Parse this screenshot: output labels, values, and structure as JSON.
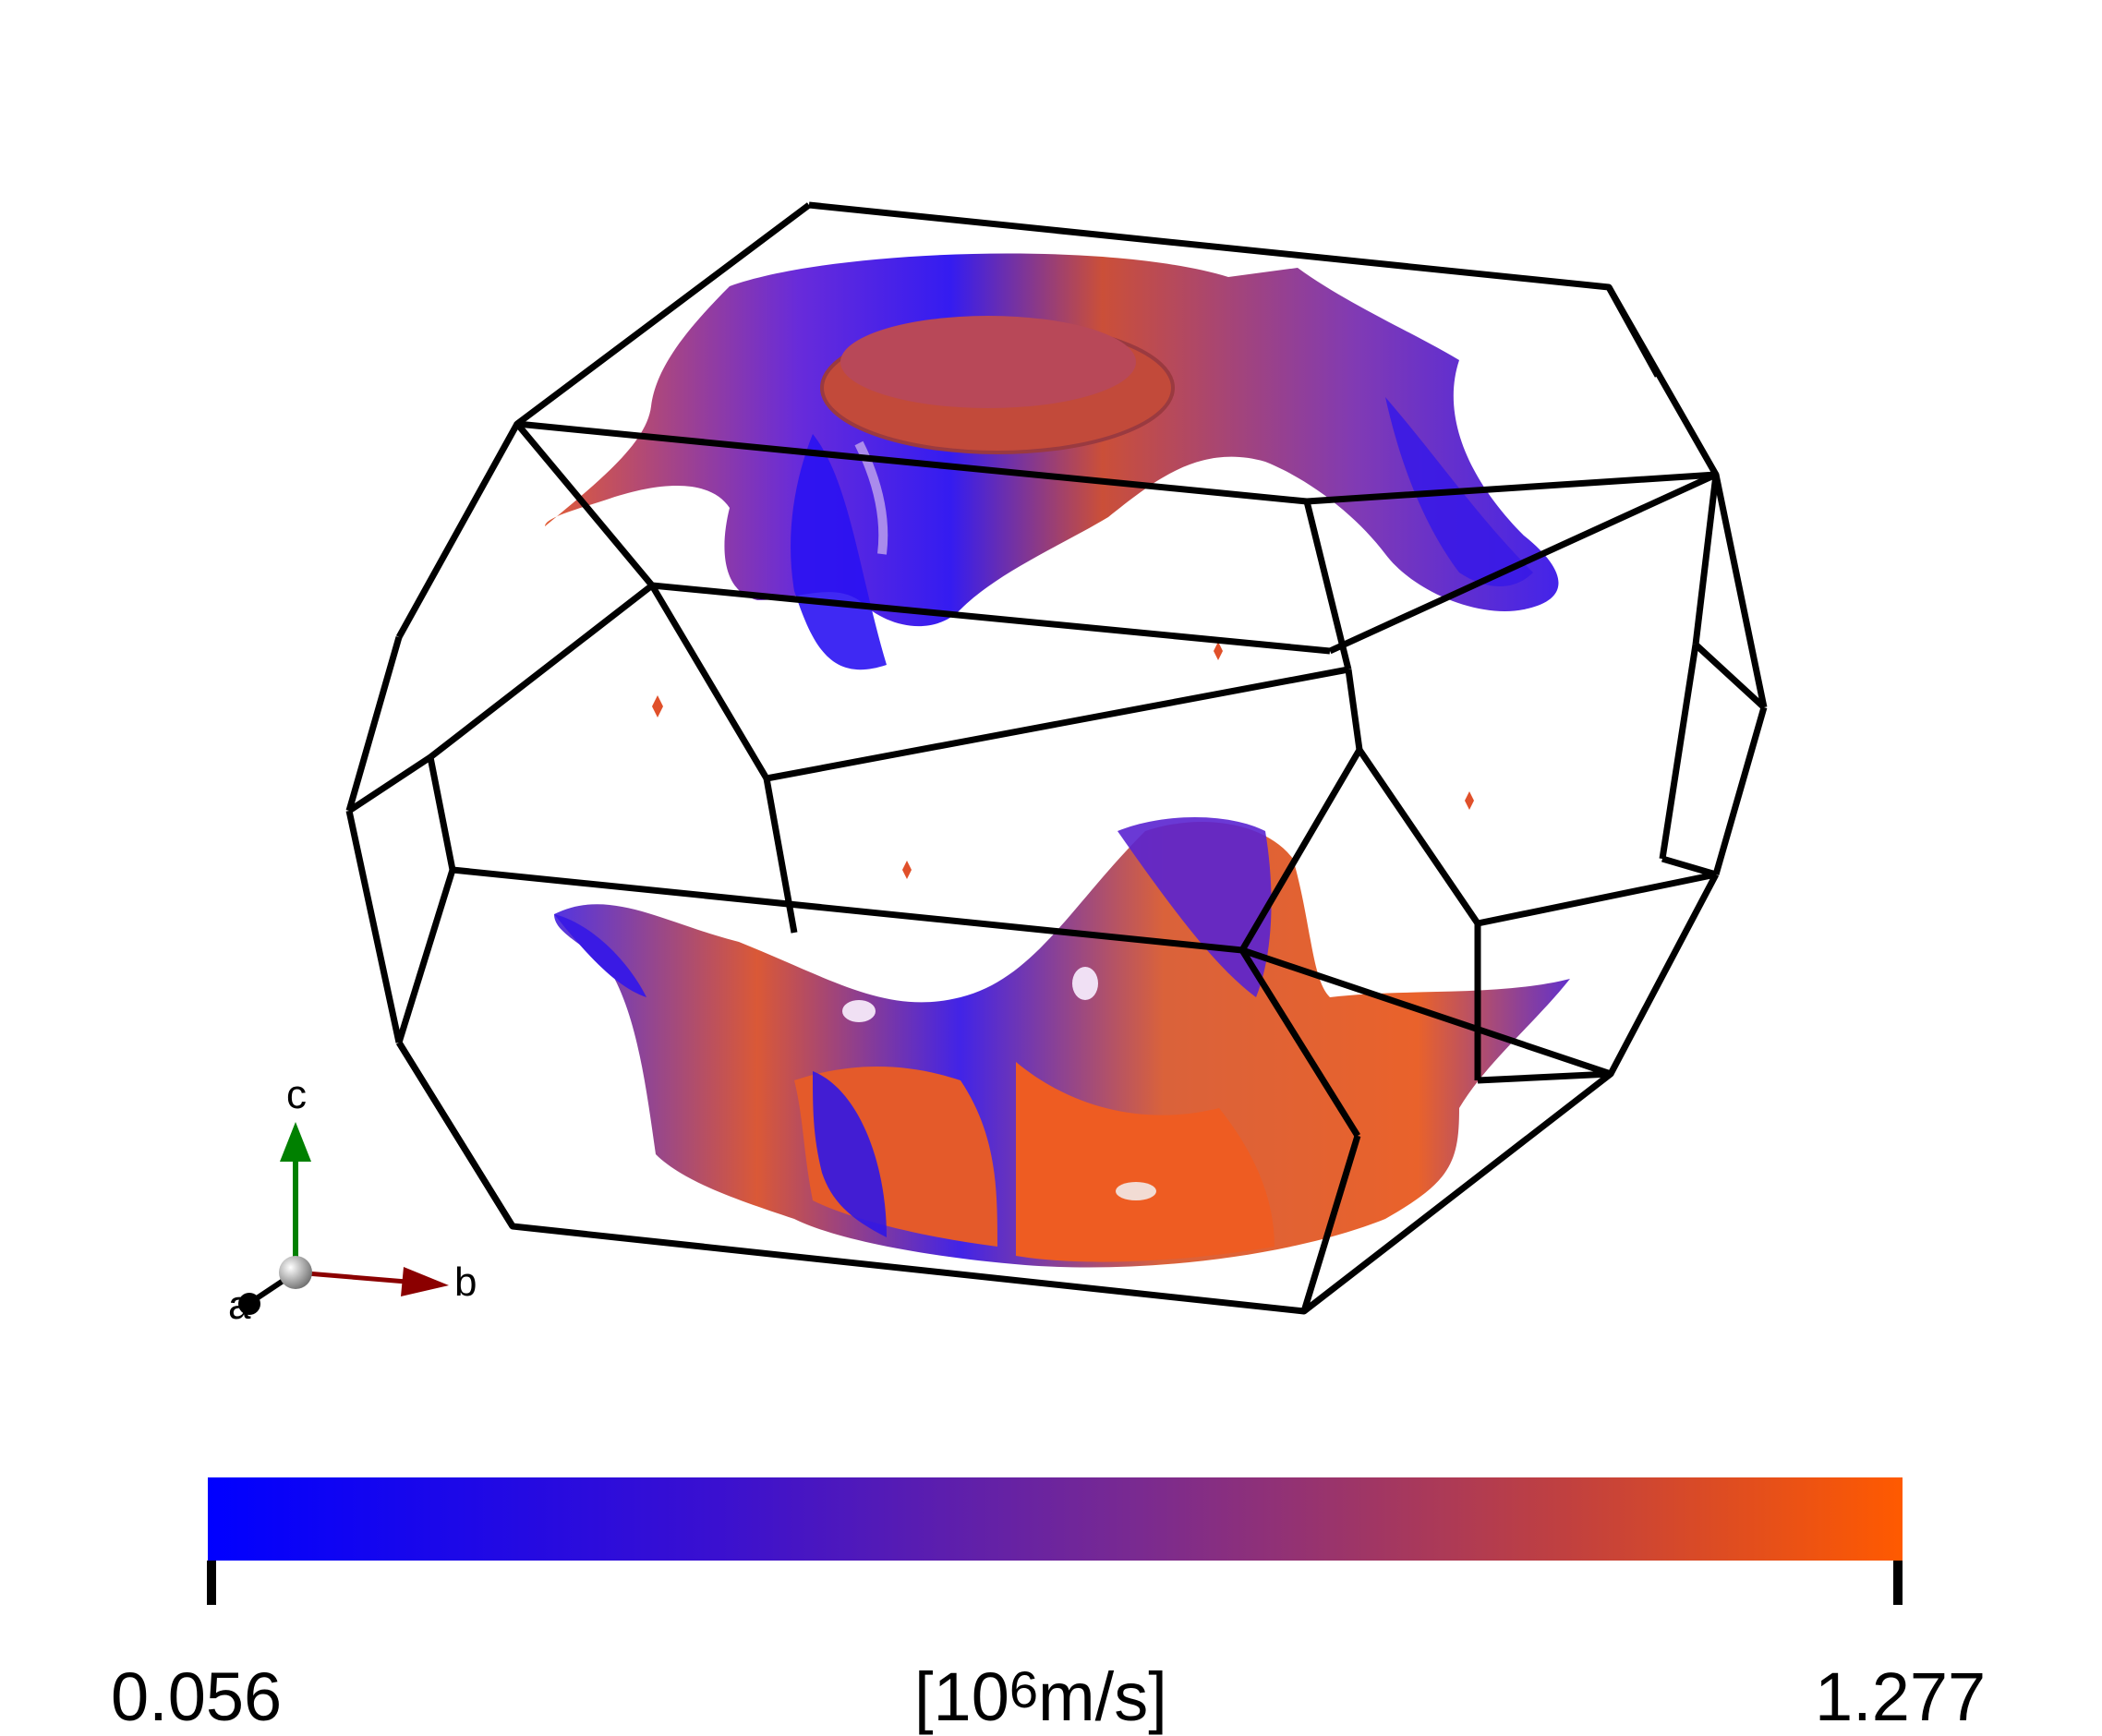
{
  "figure": {
    "colormap": {
      "min_label": "0.056",
      "max_label": "1.277",
      "unit_prefix": "[10",
      "unit_exponent": "6",
      "unit_suffix": "m/s]",
      "color_low": "#0000ff",
      "color_mid": "#6a2aa0",
      "color_high": "#ff5a00"
    },
    "axes": {
      "a_label": "a",
      "b_label": "b",
      "c_label": "c",
      "a_color": "#000000",
      "b_color": "#8b0000",
      "c_color": "#008000"
    },
    "brillouin_zone_color": "#000000"
  }
}
